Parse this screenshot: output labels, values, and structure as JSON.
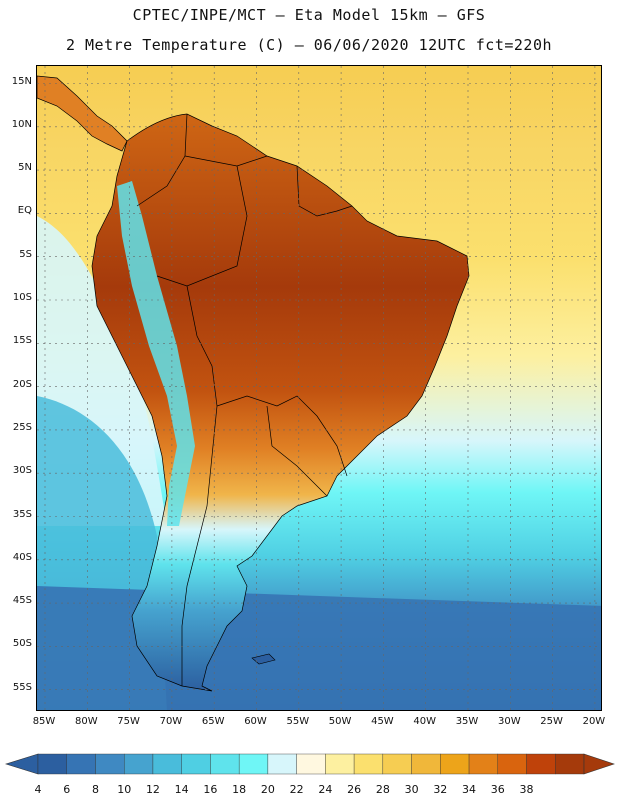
{
  "header": {
    "line1": "CPTEC/INPE/MCT —  Eta Model 15km — GFS",
    "line2": "2 Metre Temperature (C) — 06/06/2020 12UTC fct=220h"
  },
  "axes": {
    "lat_labels": [
      "15N",
      "10N",
      "5N",
      "EQ",
      "5S",
      "10S",
      "15S",
      "20S",
      "25S",
      "30S",
      "35S",
      "40S",
      "45S",
      "50S",
      "55S"
    ],
    "lon_labels": [
      "85W",
      "80W",
      "75W",
      "70W",
      "65W",
      "60W",
      "55W",
      "50W",
      "45W",
      "40W",
      "35W",
      "30W",
      "25W",
      "20W"
    ]
  },
  "colorbar": {
    "labels": [
      "4",
      "6",
      "8",
      "10",
      "12",
      "14",
      "16",
      "18",
      "20",
      "22",
      "24",
      "26",
      "28",
      "30",
      "32",
      "34",
      "36",
      "38"
    ],
    "colors": [
      "#2c5fa0",
      "#3674b4",
      "#3f89c2",
      "#46a3cf",
      "#49bcdb",
      "#4fcfe3",
      "#5fe3ec",
      "#6ff6f6",
      "#d7f6fb",
      "#fff8e0",
      "#fdf0a0",
      "#fbe06e",
      "#f6cd52",
      "#f0b73a",
      "#eda41a",
      "#e38118",
      "#d9640e",
      "#bf420a",
      "#a53a0b"
    ],
    "land_hot": "#a53a0b",
    "land_warm": "#cf6614",
    "land_mild": "#e58a28",
    "land_cool": "#f0b54a"
  }
}
